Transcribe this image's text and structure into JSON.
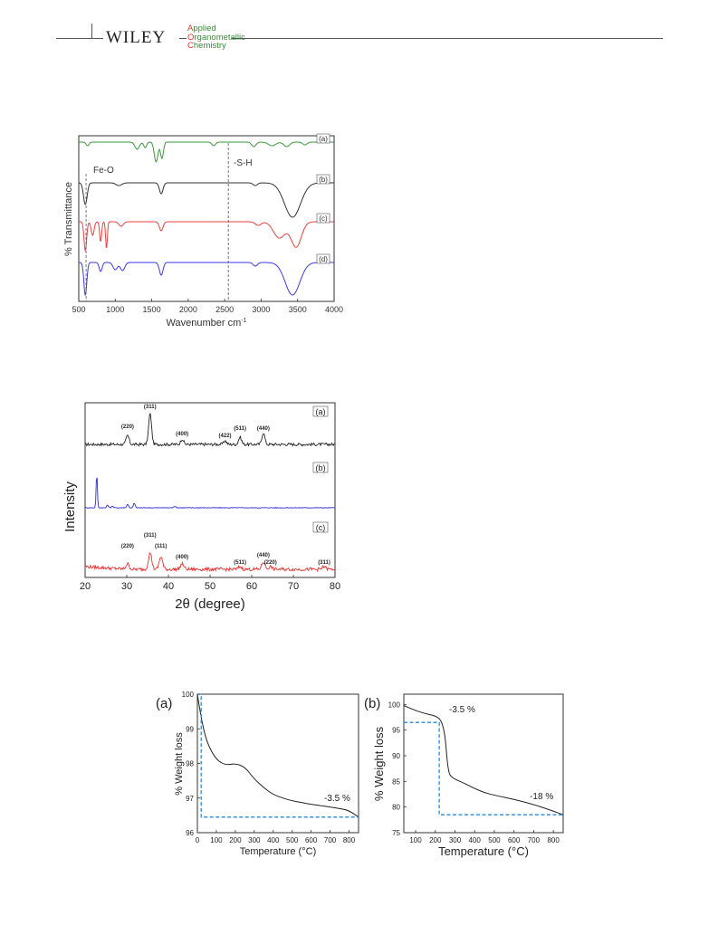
{
  "header": {
    "publisher": "WILEY",
    "journal_lines": [
      {
        "cap": "A",
        "rest": "pplied"
      },
      {
        "cap": "O",
        "rest": "rganometallic"
      },
      {
        "cap": "C",
        "rest": "hemistry"
      }
    ]
  },
  "figures": {
    "ftir": {
      "chart_data": {
        "type": "line",
        "xlabel": "Wavenumber cm",
        "xlabel_sup": "-1",
        "ylabel": "% Transmittance",
        "xlim": [
          500,
          4000
        ],
        "x_ticks": [
          500,
          1000,
          1500,
          2000,
          2500,
          3000,
          3500,
          4000
        ],
        "annotations": [
          {
            "text": "Fe-O",
            "x": 600
          },
          {
            "text": "-S-H",
            "x": 2550
          }
        ],
        "series": [
          {
            "name": "(a)",
            "color": "#3a9a3a"
          },
          {
            "name": "(b)",
            "color": "#333333"
          },
          {
            "name": "(c)",
            "color": "#e84040"
          },
          {
            "name": "(d)",
            "color": "#3a3ae0"
          }
        ]
      }
    },
    "xrd": {
      "chart_data": {
        "type": "line",
        "xlabel": "2θ (degree)",
        "ylabel": "Intensity",
        "xlim": [
          20,
          80
        ],
        "x_ticks": [
          20,
          30,
          40,
          50,
          60,
          70,
          80
        ],
        "series": [
          {
            "name": "(a)",
            "color": "#222222",
            "peaks": [
              {
                "label": "(220)",
                "x": 30.2
              },
              {
                "label": "(311)",
                "x": 35.6
              },
              {
                "label": "(400)",
                "x": 43.3
              },
              {
                "label": "(422)",
                "x": 53.6
              },
              {
                "label": "(511)",
                "x": 57.2
              },
              {
                "label": "(440)",
                "x": 62.8
              }
            ]
          },
          {
            "name": "(b)",
            "color": "#2a2ad8",
            "peaks": []
          },
          {
            "name": "(c)",
            "color": "#e83030",
            "peaks": [
              {
                "label": "(220)",
                "x": 30.2
              },
              {
                "label": "(311)",
                "x": 35.6
              },
              {
                "label": "(111)",
                "x": 38.2
              },
              {
                "label": "(400)",
                "x": 43.3
              },
              {
                "label": "(511)",
                "x": 57.2
              },
              {
                "label": "(440)",
                "x": 62.8
              },
              {
                "label": "(220)",
                "x": 64.5
              },
              {
                "label": "(311)",
                "x": 77.4
              }
            ]
          }
        ]
      }
    },
    "tga_a": {
      "panel_label": "(a)",
      "chart_data": {
        "type": "line",
        "xlabel": "Temperature (°C)",
        "ylabel": "% Weight loss",
        "xlim": [
          0,
          850
        ],
        "ylim": [
          96,
          100
        ],
        "x_ticks": [
          0,
          100,
          200,
          300,
          400,
          500,
          600,
          700,
          800
        ],
        "y_ticks": [
          96,
          97,
          98,
          99,
          100
        ],
        "annotation": "-3.5 %",
        "series": [
          {
            "name": "",
            "color": "#222222",
            "x": [
              0,
              20,
              50,
              100,
              150,
              200,
              250,
              300,
              350,
              400,
              450,
              500,
              550,
              600,
              650,
              700,
              750,
              800,
              850
            ],
            "y": [
              100,
              99.3,
              98.6,
              98.1,
              97.95,
              98.0,
              97.9,
              97.55,
              97.3,
              97.1,
              97.0,
              96.92,
              96.87,
              96.82,
              96.78,
              96.74,
              96.7,
              96.64,
              96.45
            ]
          },
          {
            "name": "",
            "color": "#2a8ad8",
            "dashed": true,
            "x": [
              0,
              20,
              20,
              850
            ],
            "y": [
              100,
              100,
              96.45,
              96.45
            ]
          }
        ]
      }
    },
    "tga_b": {
      "panel_label": "(b)",
      "chart_data": {
        "type": "line",
        "xlabel": "Temperature (°C)",
        "ylabel": "% Weight loss",
        "xlim": [
          40,
          850
        ],
        "ylim": [
          75,
          102
        ],
        "x_ticks": [
          100,
          200,
          300,
          400,
          500,
          600,
          700,
          800
        ],
        "y_ticks": [
          75,
          80,
          85,
          90,
          95,
          100
        ],
        "annotations": [
          {
            "text": "-3.5 %",
            "x": 270,
            "y": 98.5
          },
          {
            "text": "-18 %",
            "x": 680,
            "y": 81.5
          }
        ],
        "series": [
          {
            "name": "",
            "color": "#222222",
            "x": [
              40,
              100,
              150,
              200,
              230,
              250,
              260,
              270,
              280,
              300,
              350,
              400,
              450,
              500,
              600,
              700,
              800,
              850
            ],
            "y": [
              99.8,
              98.8,
              98.2,
              97.8,
              97.0,
              94.0,
              89.0,
              86.5,
              86.0,
              85.4,
              84.6,
              83.6,
              82.8,
              82.3,
              81.5,
              80.5,
              79.2,
              78.5
            ]
          },
          {
            "name": "",
            "color": "#2a8ad8",
            "dashed": true,
            "x": [
              40,
              220,
              220,
              850
            ],
            "y": [
              96.5,
              96.5,
              78.5,
              78.5
            ]
          }
        ]
      }
    }
  }
}
